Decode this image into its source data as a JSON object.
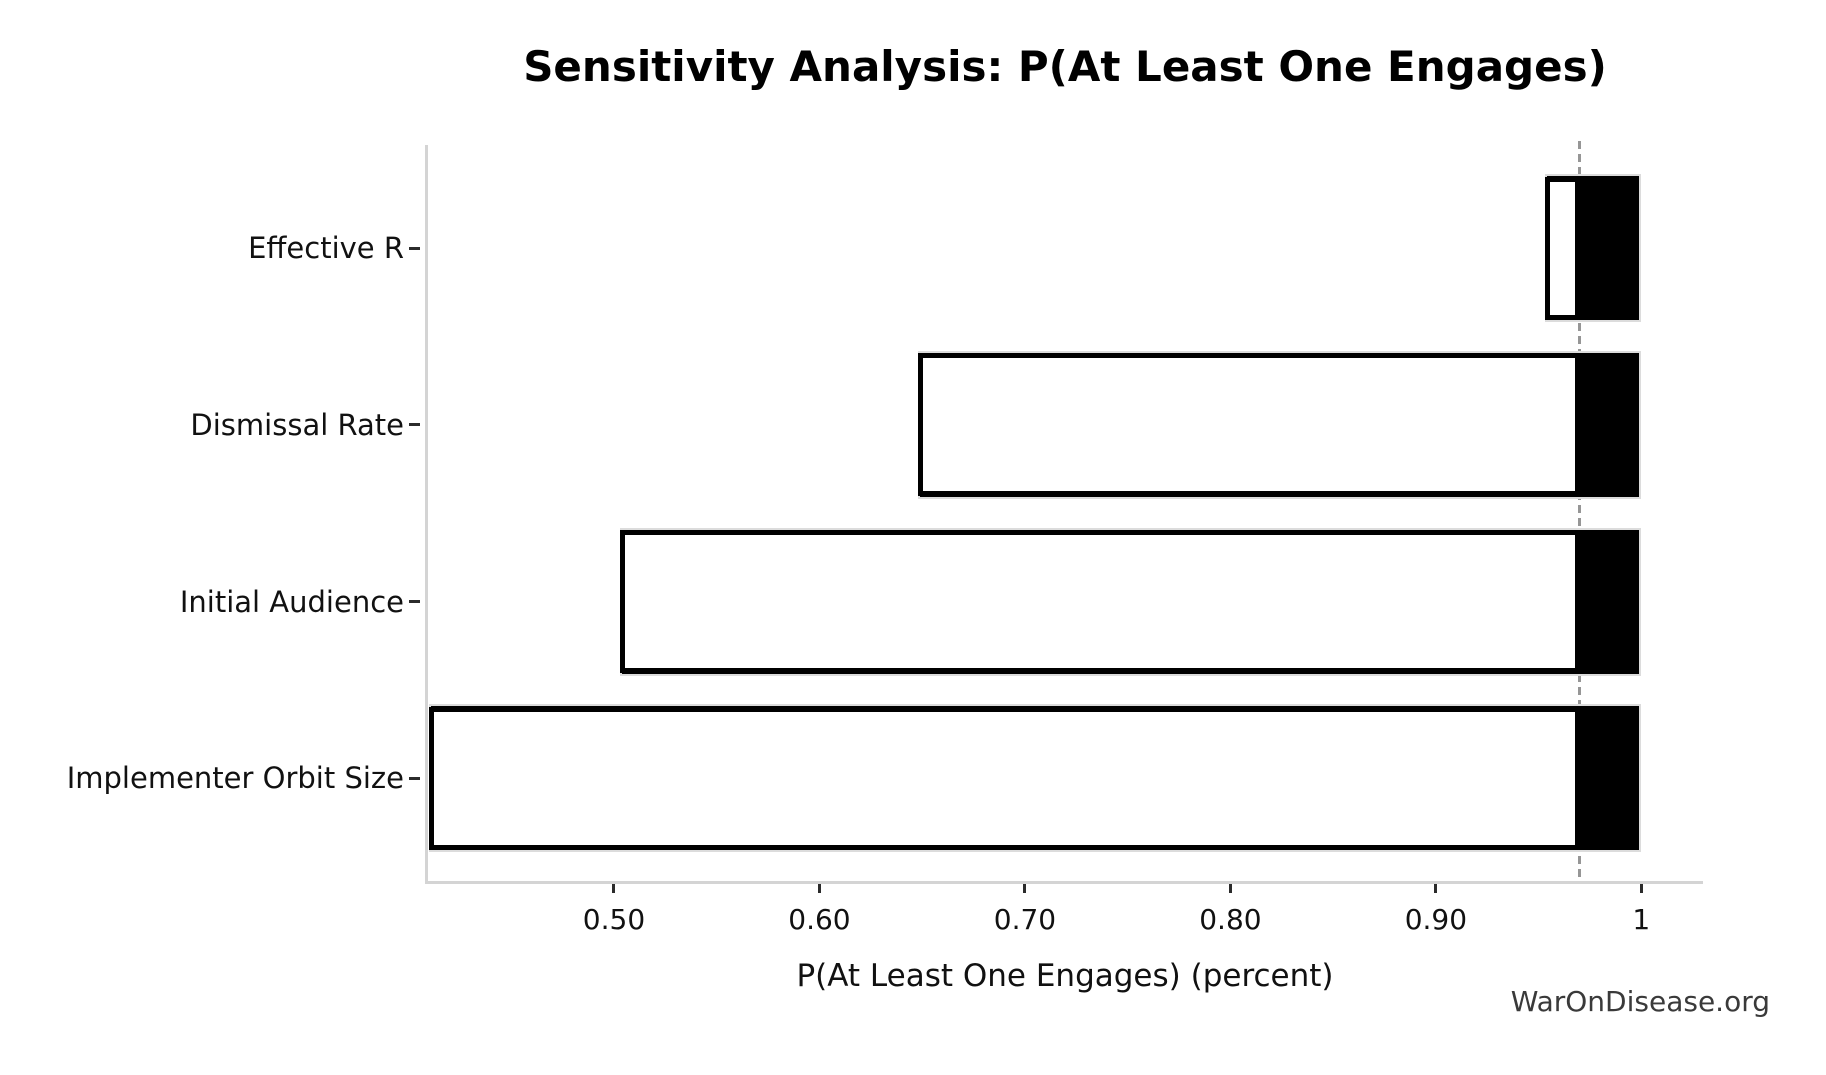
{
  "chart_data": {
    "type": "bar",
    "variant": "tornado-sensitivity",
    "orientation": "horizontal",
    "title": "Sensitivity Analysis: P(At Least One Engages)",
    "xlabel": "P(At Least One Engages) (percent)",
    "watermark": "WarOnDisease.org",
    "grid": false,
    "legend": false,
    "baseline_value": 0.97,
    "baseline_style": "dashed-gray-vertical",
    "xlim": [
      0.409,
      1.03
    ],
    "xticks": [
      {
        "value": 0.5,
        "label": "0.50"
      },
      {
        "value": 0.6,
        "label": "0.60"
      },
      {
        "value": 0.7,
        "label": "0.70"
      },
      {
        "value": 0.8,
        "label": "0.80"
      },
      {
        "value": 0.9,
        "label": "0.90"
      },
      {
        "value": 1.0,
        "label": "1"
      }
    ],
    "categories": [
      "Effective R",
      "Dismissal Rate",
      "Initial Audience",
      "Implementer Orbit Size"
    ],
    "bars": [
      {
        "label": "Effective R",
        "low": 0.953,
        "high": 1.0
      },
      {
        "label": "Dismissal Rate",
        "low": 0.648,
        "high": 1.0
      },
      {
        "label": "Initial Audience",
        "low": 0.503,
        "high": 1.0
      },
      {
        "label": "Implementer Orbit Size",
        "low": 0.41,
        "high": 1.0
      }
    ],
    "colors": {
      "bar_high_fill": "#000000",
      "bar_high_edge": "#dcdcdc",
      "bar_low_fill": "#ffffff",
      "bar_low_edge": "#000000",
      "baseline": "#969696",
      "spine": "#d4d4d4",
      "text": "#111111",
      "watermark": "#3a3a3a",
      "background": "#ffffff"
    }
  }
}
